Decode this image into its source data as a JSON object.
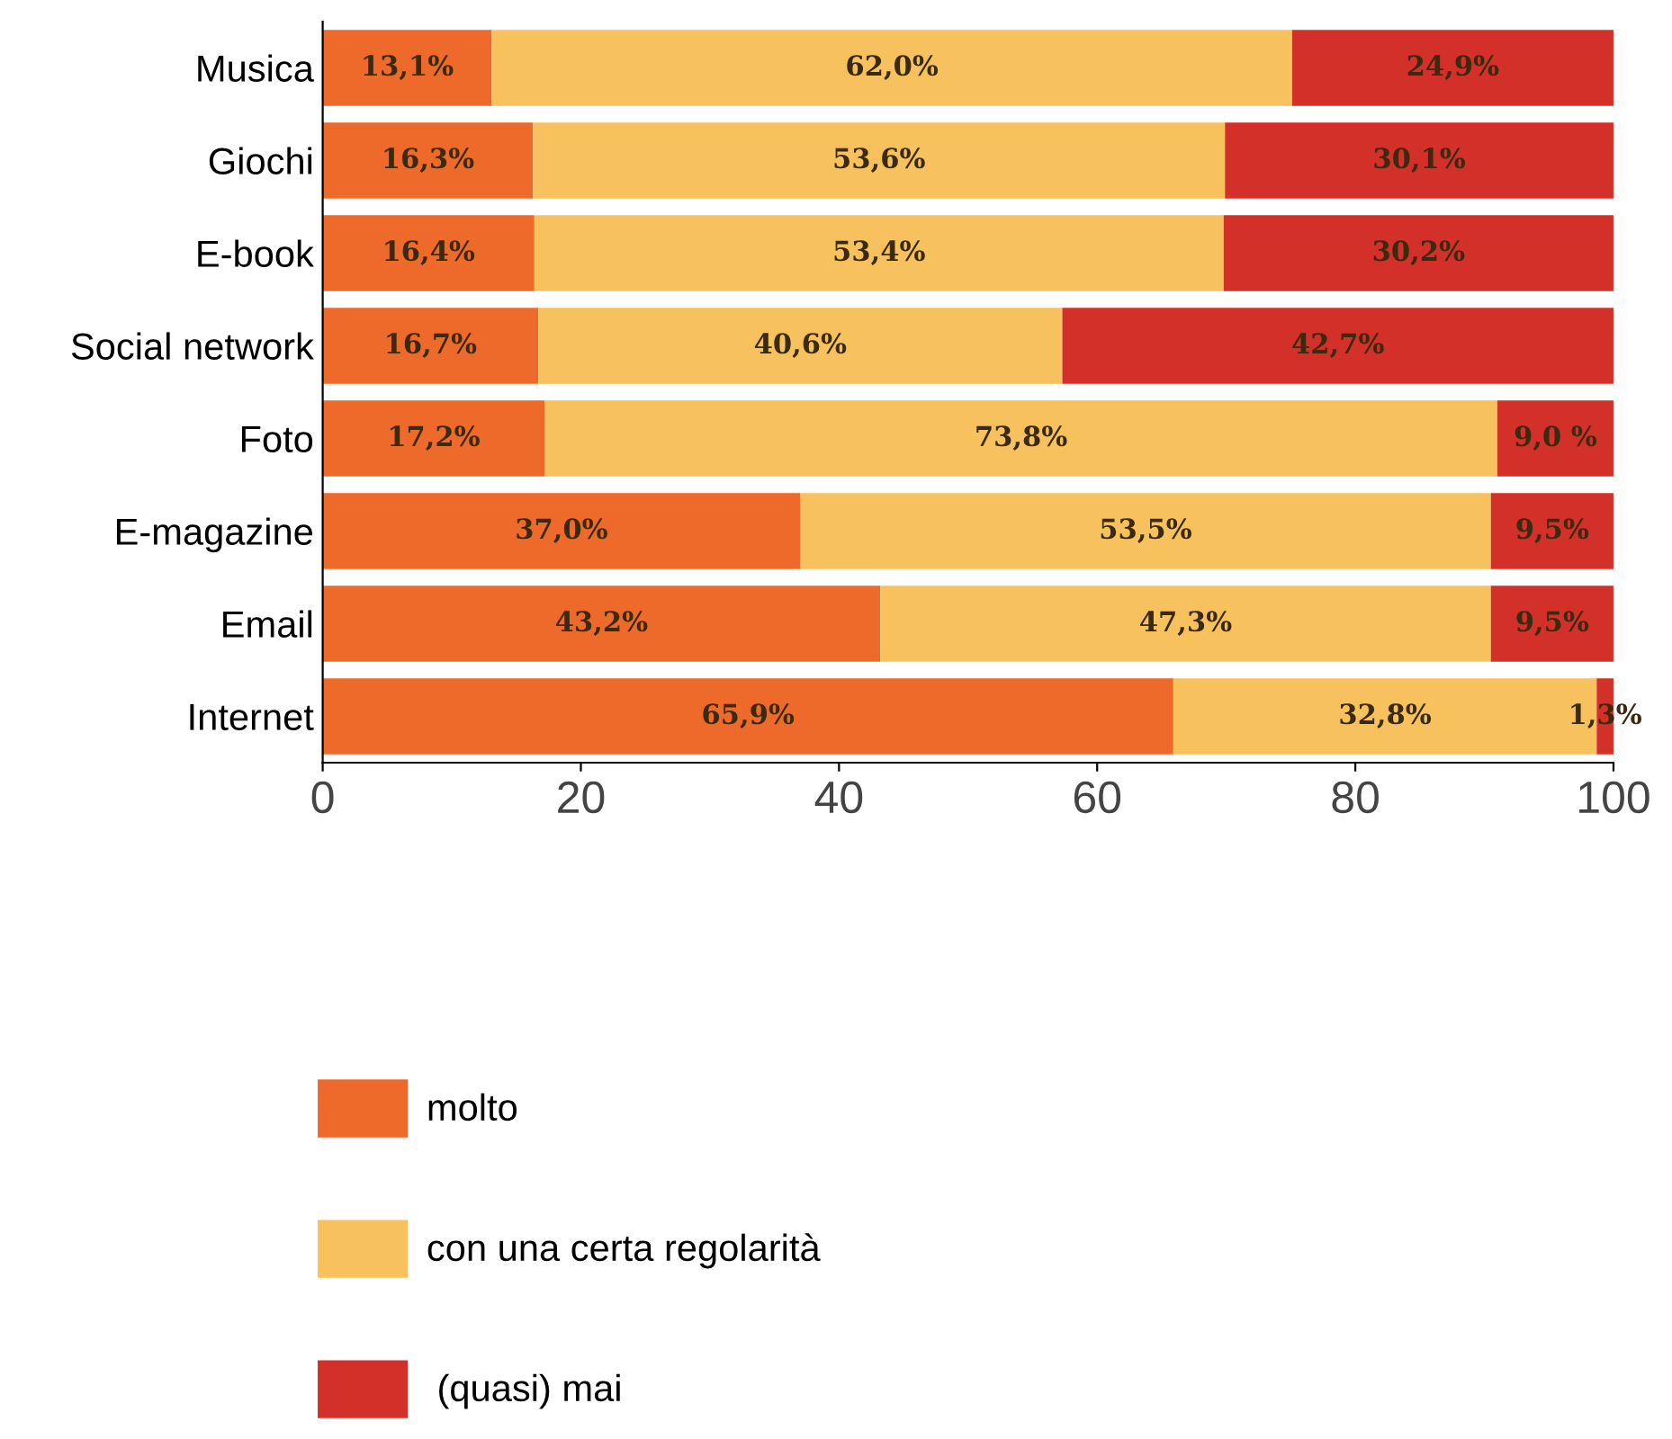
{
  "chart_data": {
    "type": "bar",
    "orientation": "horizontal",
    "stacked": true,
    "categories": [
      "Musica",
      "Giochi",
      "E-book",
      "Social network",
      "Foto",
      "E-magazine",
      "Email",
      "Internet"
    ],
    "series": [
      {
        "name": "molto",
        "color": "#ee6a2a",
        "values": [
          13.1,
          16.3,
          16.4,
          16.7,
          17.2,
          37.0,
          43.2,
          65.9
        ],
        "value_labels": [
          "13,1%",
          "16,3%",
          "16,4%",
          "16,7%",
          "17,2%",
          "37,0%",
          "43,2%",
          "65,9%"
        ]
      },
      {
        "name": "con una certa regolarità",
        "color": "#f7c25e",
        "values": [
          62.0,
          53.6,
          53.4,
          40.6,
          73.8,
          53.5,
          47.3,
          32.8
        ],
        "value_labels": [
          "62,0%",
          "53,6%",
          "53,4%",
          "40,6%",
          "73,8%",
          "53,5%",
          "47,3%",
          "32,8%"
        ]
      },
      {
        "name": " (quasi) mai",
        "color": "#d3302a",
        "values": [
          24.9,
          30.1,
          30.2,
          42.7,
          9.0,
          9.5,
          9.5,
          1.3
        ],
        "value_labels": [
          "24,9%",
          "30,1%",
          "30,2%",
          "42,7%",
          "9,0 %",
          "9,5%",
          "9,5%",
          "1,3%"
        ]
      }
    ],
    "xlim": [
      0,
      100
    ],
    "xticks": [
      0,
      20,
      40,
      60,
      80,
      100
    ],
    "grid": false,
    "legend": "bottom"
  }
}
